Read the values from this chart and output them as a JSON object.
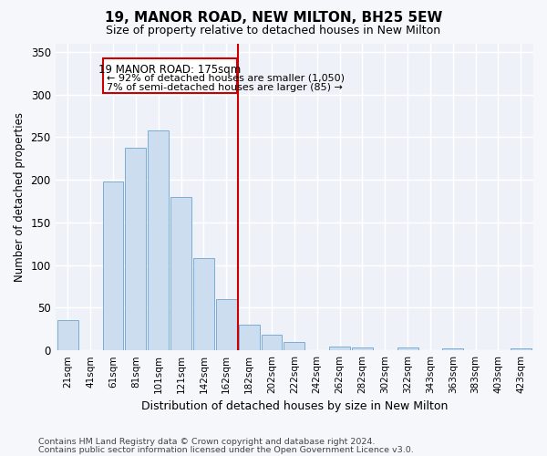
{
  "title": "19, MANOR ROAD, NEW MILTON, BH25 5EW",
  "subtitle": "Size of property relative to detached houses in New Milton",
  "xlabel": "Distribution of detached houses by size in New Milton",
  "ylabel": "Number of detached properties",
  "bar_color": "#ccddf0",
  "bar_edge_color": "#7aaed6",
  "background_color": "#eef2f8",
  "grid_color": "#ffffff",
  "fig_bg_color": "#f5f7fa",
  "annotation_title": "19 MANOR ROAD: 175sqm",
  "annotation_line1": "← 92% of detached houses are smaller (1,050)",
  "annotation_line2": "7% of semi-detached houses are larger (85) →",
  "vline_color": "#cc0000",
  "box_edge_color": "#cc0000",
  "categories": [
    "21sqm",
    "41sqm",
    "61sqm",
    "81sqm",
    "101sqm",
    "121sqm",
    "142sqm",
    "162sqm",
    "182sqm",
    "202sqm",
    "222sqm",
    "242sqm",
    "262sqm",
    "282sqm",
    "302sqm",
    "322sqm",
    "343sqm",
    "363sqm",
    "383sqm",
    "403sqm",
    "423sqm"
  ],
  "values": [
    35,
    0,
    198,
    238,
    258,
    180,
    108,
    60,
    30,
    18,
    10,
    0,
    5,
    3,
    0,
    3,
    0,
    2,
    0,
    0,
    2
  ],
  "ylim": [
    0,
    360
  ],
  "yticks": [
    0,
    50,
    100,
    150,
    200,
    250,
    300,
    350
  ],
  "footnote1": "Contains HM Land Registry data © Crown copyright and database right 2024.",
  "footnote2": "Contains public sector information licensed under the Open Government Licence v3.0."
}
